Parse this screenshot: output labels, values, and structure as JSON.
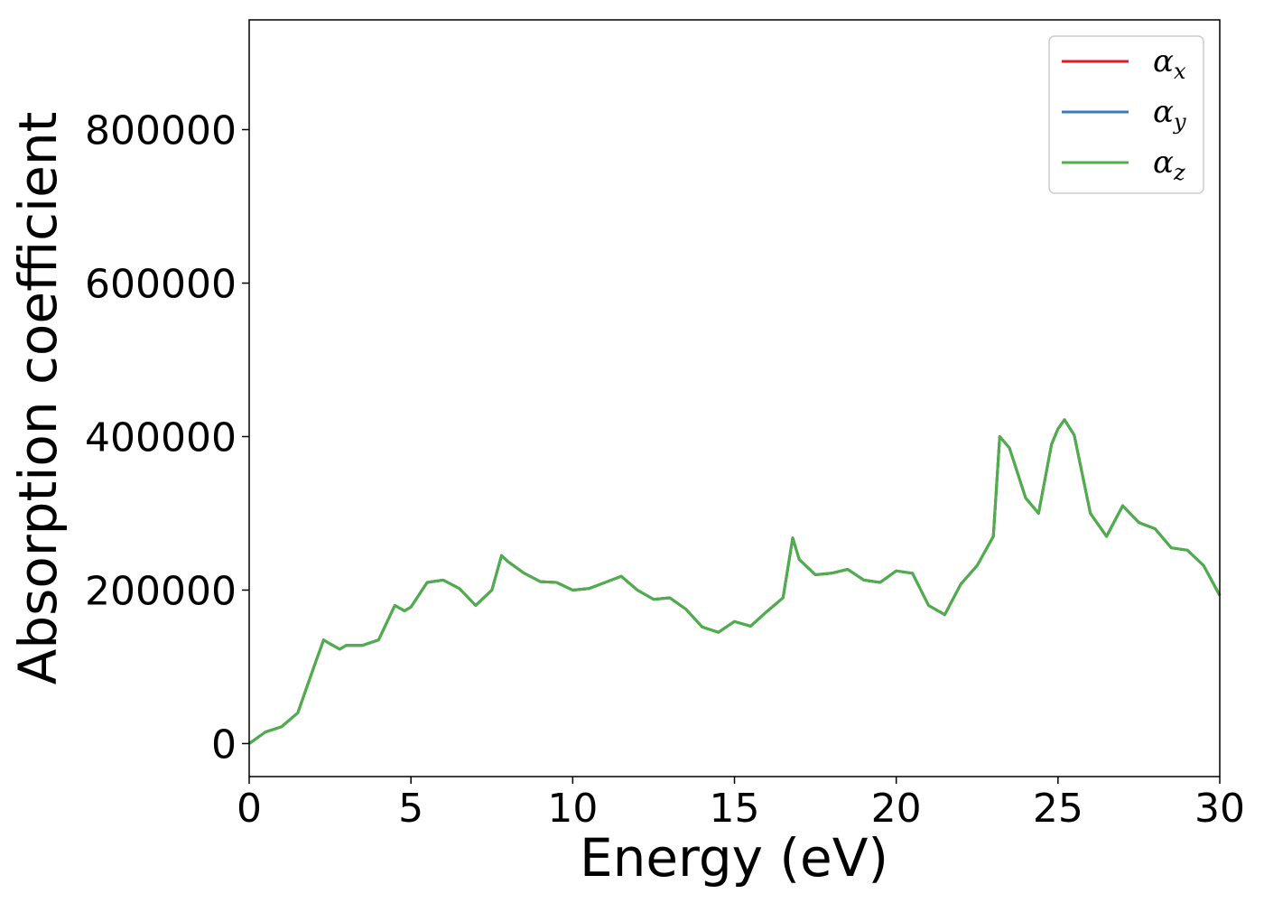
{
  "chart_data": {
    "type": "line",
    "xlabel": "Energy (eV)",
    "ylabel": "Absorption coefficient",
    "xlim": [
      0,
      30
    ],
    "ylim": [
      -43000,
      943000
    ],
    "xticks": [
      0,
      5,
      10,
      15,
      20,
      25,
      30
    ],
    "yticks": [
      0,
      200000,
      400000,
      600000,
      800000
    ],
    "x": [
      0,
      0.5,
      1,
      1.5,
      2,
      2.3,
      2.5,
      2.8,
      3,
      3.5,
      4,
      4.5,
      4.8,
      5,
      5.5,
      6,
      6.5,
      7,
      7.5,
      7.8,
      8,
      8.5,
      9,
      9.5,
      10,
      10.5,
      11,
      11.5,
      12,
      12.5,
      13,
      13.5,
      14,
      14.5,
      15,
      15.5,
      16,
      16.5,
      16.8,
      17,
      17.5,
      18,
      18.5,
      19,
      19.5,
      20,
      20.5,
      21,
      21.5,
      22,
      22.5,
      23,
      23.2,
      23.5,
      24,
      24.4,
      24.8,
      25,
      25.2,
      25.5,
      26,
      26.5,
      27,
      27.5,
      28,
      28.5,
      29,
      29.5,
      30
    ],
    "legend_position": "upper right",
    "series": [
      {
        "name": "α_x",
        "color": "#e41a1c",
        "values": [
          0,
          15000,
          22000,
          40000,
          100000,
          135000,
          130000,
          123000,
          128000,
          128000,
          135000,
          180000,
          173000,
          178000,
          210000,
          213000,
          202000,
          180000,
          200000,
          245000,
          237000,
          222000,
          211000,
          210000,
          200000,
          202000,
          210000,
          218000,
          200000,
          188000,
          190000,
          175000,
          152000,
          145000,
          159000,
          153000,
          172000,
          190000,
          268000,
          240000,
          220000,
          222000,
          227000,
          213000,
          210000,
          225000,
          222000,
          180000,
          168000,
          208000,
          232000,
          270000,
          400000,
          385000,
          320000,
          300000,
          390000,
          410000,
          422000,
          402000,
          300000,
          270000,
          310000,
          288000,
          280000,
          255000,
          252000,
          232000,
          193000
        ]
      },
      {
        "name": "α_y",
        "color": "#377eb8",
        "values": [
          0,
          15000,
          22000,
          40000,
          100000,
          135000,
          130000,
          123000,
          128000,
          128000,
          135000,
          180000,
          173000,
          178000,
          210000,
          213000,
          202000,
          180000,
          200000,
          245000,
          237000,
          222000,
          211000,
          210000,
          200000,
          202000,
          210000,
          218000,
          200000,
          188000,
          190000,
          175000,
          152000,
          145000,
          159000,
          153000,
          172000,
          190000,
          268000,
          240000,
          220000,
          222000,
          227000,
          213000,
          210000,
          225000,
          222000,
          180000,
          168000,
          208000,
          232000,
          270000,
          400000,
          385000,
          320000,
          300000,
          390000,
          410000,
          422000,
          402000,
          300000,
          270000,
          310000,
          288000,
          280000,
          255000,
          252000,
          232000,
          193000
        ]
      },
      {
        "name": "α_z",
        "color": "#4daf4a",
        "values": [
          0,
          15000,
          22000,
          40000,
          100000,
          135000,
          130000,
          123000,
          128000,
          128000,
          135000,
          180000,
          173000,
          178000,
          210000,
          213000,
          202000,
          180000,
          200000,
          245000,
          237000,
          222000,
          211000,
          210000,
          200000,
          202000,
          210000,
          218000,
          200000,
          188000,
          190000,
          175000,
          152000,
          145000,
          159000,
          153000,
          172000,
          190000,
          268000,
          240000,
          220000,
          222000,
          227000,
          213000,
          210000,
          225000,
          222000,
          180000,
          168000,
          208000,
          232000,
          270000,
          400000,
          385000,
          320000,
          300000,
          390000,
          410000,
          422000,
          402000,
          300000,
          270000,
          310000,
          288000,
          280000,
          255000,
          252000,
          232000,
          193000
        ]
      }
    ]
  }
}
